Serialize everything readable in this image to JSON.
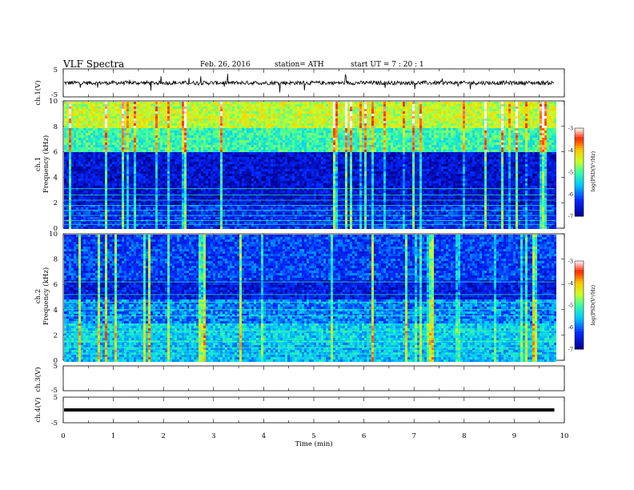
{
  "header": {
    "title": "VLF  Spectra",
    "date": "Feb. 26, 2016",
    "station": "station= ATH",
    "start_ut": "start  UT  =   7  : 20 : 1"
  },
  "chart_data": [
    {
      "type": "line",
      "name": "ch1-waveform",
      "ylabel": "ch.1(V)",
      "ylim": [
        -5,
        5
      ],
      "yticks": [
        "5",
        "-5"
      ],
      "xlim": [
        0,
        10
      ],
      "baseline": 0,
      "description_values": "noisy waveform centered near 0 V, amplitude about ±1 V with spikes up to ±4 V, ending at 9.8 min"
    },
    {
      "type": "heatmap",
      "name": "ch1-spectrogram",
      "ylabel_top": "ch.1",
      "ylabel": "Frequency  (kHz)",
      "ylim": [
        0,
        10
      ],
      "yticks": [
        "0",
        "2",
        "4",
        "6",
        "8",
        "10"
      ],
      "xlim": [
        0,
        10
      ],
      "data_end_min": 9.8,
      "colorbar": {
        "label": "log(PSD(V²/Hz)",
        "ticks": [
          "-3",
          "-4",
          "-5",
          "-6",
          "-7"
        ],
        "range": [
          -7,
          -3
        ]
      },
      "bands": [
        {
          "f0": 0,
          "f1": 2,
          "level": -6.3
        },
        {
          "f0": 2,
          "f1": 6,
          "level": -6.6
        },
        {
          "f0": 6,
          "f1": 8,
          "level": -5.1
        },
        {
          "f0": 8,
          "f1": 10,
          "level": -4.5
        }
      ],
      "lines_khz": [
        0.3,
        0.6,
        1.0,
        1.4,
        1.8,
        2.2,
        2.6,
        3.1
      ]
    },
    {
      "type": "heatmap",
      "name": "ch2-spectrogram",
      "ylabel_top": "ch.2",
      "ylabel": "Frequency  (kHz)",
      "ylim": [
        0,
        10
      ],
      "yticks": [
        "0",
        "2",
        "4",
        "6",
        "8",
        "10"
      ],
      "xlim": [
        0,
        10
      ],
      "data_end_min": 9.8,
      "colorbar": {
        "label": "log(PSD(V²/Hz)",
        "ticks": [
          "-3",
          "-4",
          "-5",
          "-6",
          "-7"
        ],
        "range": [
          -7,
          -3
        ]
      },
      "bands": [
        {
          "f0": 0,
          "f1": 1.5,
          "level": -5.6
        },
        {
          "f0": 1.5,
          "f1": 3,
          "level": -5.5
        },
        {
          "f0": 3,
          "f1": 5,
          "level": -5.9
        },
        {
          "f0": 5,
          "f1": 6.5,
          "level": -6.5
        },
        {
          "f0": 6.5,
          "f1": 10,
          "level": -6.2
        }
      ],
      "lines_khz": [
        0.5,
        1.0,
        1.5,
        2.3,
        3.5,
        4.0,
        4.6,
        5.2,
        6.2
      ]
    },
    {
      "type": "line",
      "name": "ch3-waveform",
      "ylabel": "ch.3(V)",
      "ylim": [
        -5,
        5
      ],
      "yticks": [
        "5",
        "-5"
      ],
      "xlim": [
        0,
        10
      ],
      "baseline": 0,
      "description_values": "flat, no signal"
    },
    {
      "type": "line",
      "name": "ch4-waveform",
      "ylabel": "ch.4(V)",
      "ylim": [
        -5,
        5
      ],
      "yticks": [
        "5",
        "-5"
      ],
      "xlim": [
        0,
        10
      ],
      "baseline": 0,
      "description_values": "constant thick line at 0 V until 9.8 min"
    }
  ],
  "x_axis": {
    "label": "Time  (min)",
    "ticks": [
      "0",
      "1",
      "2",
      "3",
      "4",
      "5",
      "6",
      "7",
      "8",
      "9",
      "10"
    ]
  }
}
